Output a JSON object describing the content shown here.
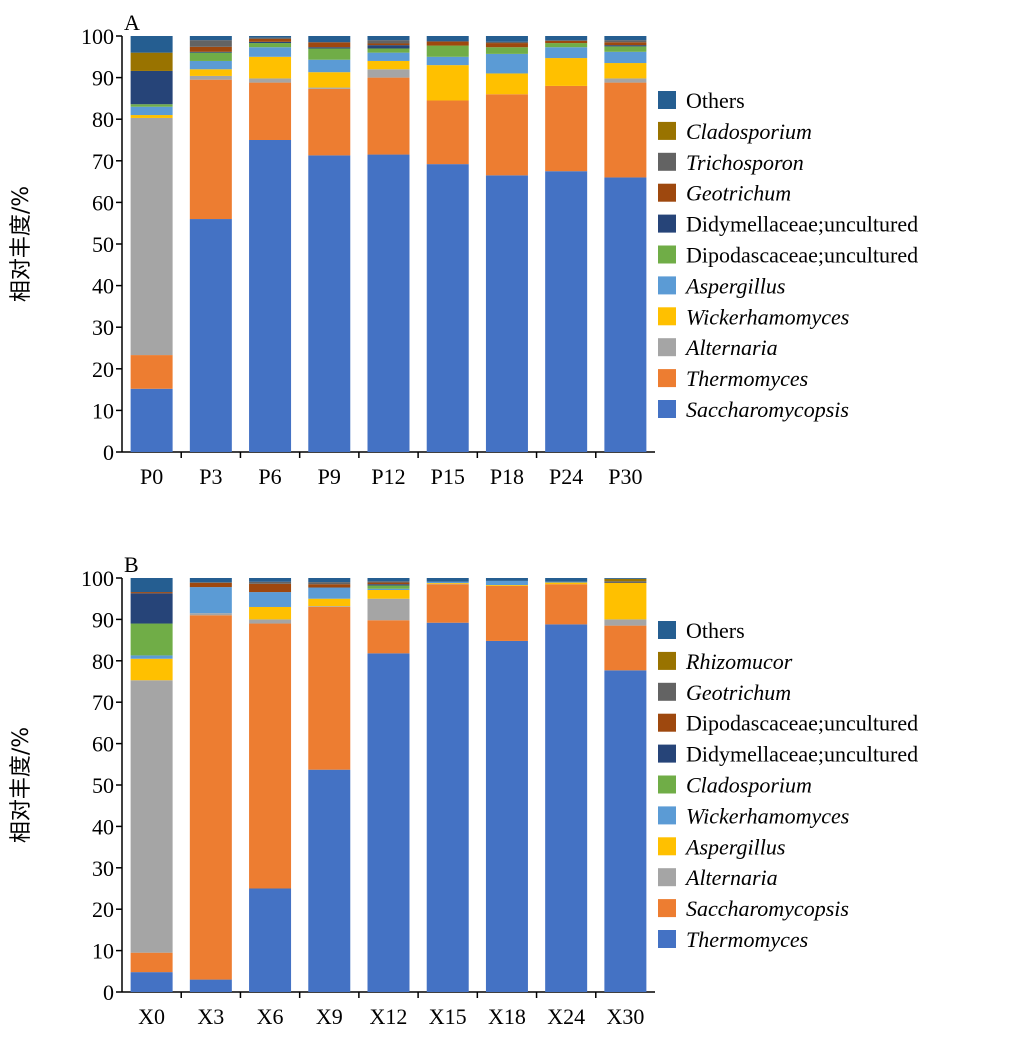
{
  "chart_data": [
    {
      "type": "bar",
      "stacked": true,
      "panel_label": "A",
      "title": "",
      "xlabel": "",
      "ylabel": "相对丰度/%",
      "ylim": [
        0,
        100
      ],
      "yticks": [
        0,
        10,
        20,
        30,
        40,
        50,
        60,
        70,
        80,
        90,
        100
      ],
      "grid": false,
      "legend_position": "right",
      "categories": [
        "P0",
        "P3",
        "P6",
        "P9",
        "P12",
        "P15",
        "P18",
        "P24",
        "P30"
      ],
      "series": [
        {
          "name": "Saccharomycopsis",
          "italic": true,
          "color": "#4472c4",
          "values": [
            15.2,
            56.0,
            75.0,
            71.3,
            71.5,
            69.2,
            66.5,
            67.5,
            66.0
          ]
        },
        {
          "name": "Thermomyces",
          "italic": true,
          "color": "#ed7d31",
          "values": [
            8.1,
            33.5,
            13.8,
            16.0,
            18.5,
            15.3,
            19.5,
            20.5,
            22.8
          ]
        },
        {
          "name": "Alternaria",
          "italic": true,
          "color": "#a5a5a5",
          "values": [
            57.0,
            0.9,
            1.0,
            0.3,
            2.0,
            0.0,
            0.0,
            0.0,
            1.0
          ]
        },
        {
          "name": "Wickerhamomyces",
          "italic": true,
          "color": "#ffc000",
          "values": [
            0.7,
            1.6,
            5.2,
            3.7,
            2.0,
            8.5,
            5.0,
            6.7,
            3.7
          ]
        },
        {
          "name": "Aspergillus",
          "italic": true,
          "color": "#5b9bd5",
          "values": [
            2.0,
            2.0,
            2.3,
            3.0,
            2.0,
            2.0,
            4.7,
            2.6,
            2.7
          ]
        },
        {
          "name": "Dipodascaceae;uncultured",
          "italic": false,
          "color": "#70ad47",
          "values": [
            0.6,
            2.0,
            1.0,
            2.7,
            1.0,
            2.7,
            1.6,
            1.0,
            1.3
          ]
        },
        {
          "name": "Didymellaceae;uncultured",
          "italic": false,
          "color": "#264478",
          "values": [
            8.0,
            0.2,
            0.3,
            0.3,
            0.8,
            0.0,
            0.0,
            0.0,
            0.3
          ]
        },
        {
          "name": "Geotrichum",
          "italic": true,
          "color": "#9e480e",
          "values": [
            0.0,
            1.2,
            0.7,
            1.2,
            0.4,
            1.0,
            1.0,
            0.5,
            0.7
          ]
        },
        {
          "name": "Trichosporon",
          "italic": true,
          "color": "#636363",
          "values": [
            0.0,
            1.6,
            0.3,
            0.0,
            0.8,
            0.0,
            0.3,
            0.2,
            0.5
          ]
        },
        {
          "name": "Cladosporium",
          "italic": true,
          "color": "#997300",
          "values": [
            4.4,
            0.0,
            0.0,
            0.0,
            0.0,
            0.0,
            0.0,
            0.0,
            0.0
          ]
        },
        {
          "name": "Others",
          "italic": false,
          "color": "#255e91",
          "values": [
            4.0,
            1.0,
            0.4,
            1.5,
            1.0,
            1.3,
            1.4,
            1.0,
            1.0
          ]
        }
      ]
    },
    {
      "type": "bar",
      "stacked": true,
      "panel_label": "B",
      "title": "",
      "xlabel": "",
      "ylabel": "相对丰度/%",
      "ylim": [
        0,
        100
      ],
      "yticks": [
        0,
        10,
        20,
        30,
        40,
        50,
        60,
        70,
        80,
        90,
        100
      ],
      "grid": false,
      "legend_position": "right",
      "categories": [
        "X0",
        "X3",
        "X6",
        "X9",
        "X12",
        "X15",
        "X18",
        "X24",
        "X30"
      ],
      "series": [
        {
          "name": "Thermomyces",
          "italic": true,
          "color": "#4472c4",
          "values": [
            4.8,
            3.0,
            25.0,
            53.7,
            81.8,
            89.2,
            84.8,
            88.8,
            77.7
          ]
        },
        {
          "name": "Saccharomycopsis",
          "italic": true,
          "color": "#ed7d31",
          "values": [
            4.7,
            88.0,
            64.0,
            39.3,
            8.0,
            9.3,
            13.3,
            9.7,
            10.8
          ]
        },
        {
          "name": "Alternaria",
          "italic": true,
          "color": "#a5a5a5",
          "values": [
            65.8,
            0.5,
            1.0,
            0.2,
            5.2,
            0.1,
            0.0,
            0.0,
            1.5
          ]
        },
        {
          "name": "Aspergillus",
          "italic": true,
          "color": "#ffc000",
          "values": [
            5.2,
            0.0,
            3.0,
            1.8,
            2.1,
            0.2,
            0.2,
            0.4,
            8.8
          ]
        },
        {
          "name": "Wickerhamomyces",
          "italic": true,
          "color": "#5b9bd5",
          "values": [
            0.8,
            6.3,
            3.6,
            2.7,
            0.3,
            0.3,
            1.0,
            0.2,
            0.0
          ]
        },
        {
          "name": "Cladosporium",
          "italic": true,
          "color": "#70ad47",
          "values": [
            7.7,
            0.0,
            0.0,
            0.0,
            0.8,
            0.0,
            0.0,
            0.0,
            0.0
          ]
        },
        {
          "name": "Didymellaceae;uncultured",
          "italic": false,
          "color": "#264478",
          "values": [
            7.3,
            0.0,
            0.0,
            0.0,
            0.3,
            0.0,
            0.0,
            0.0,
            0.0
          ]
        },
        {
          "name": "Dipodascaceae;uncultured",
          "italic": false,
          "color": "#9e480e",
          "values": [
            0.3,
            1.0,
            2.0,
            0.8,
            0.4,
            0.0,
            0.0,
            0.0,
            0.0
          ]
        },
        {
          "name": "Geotrichum",
          "italic": true,
          "color": "#636363",
          "values": [
            0.0,
            0.2,
            0.5,
            0.5,
            0.3,
            0.0,
            0.0,
            0.0,
            0.4
          ]
        },
        {
          "name": "Rhizomucor",
          "italic": true,
          "color": "#997300",
          "values": [
            0.0,
            0.0,
            0.0,
            0.0,
            0.0,
            0.0,
            0.0,
            0.0,
            0.6
          ]
        },
        {
          "name": "Others",
          "italic": false,
          "color": "#255e91",
          "values": [
            3.4,
            1.0,
            0.9,
            1.0,
            0.8,
            0.9,
            0.7,
            0.9,
            0.2
          ]
        }
      ]
    }
  ]
}
